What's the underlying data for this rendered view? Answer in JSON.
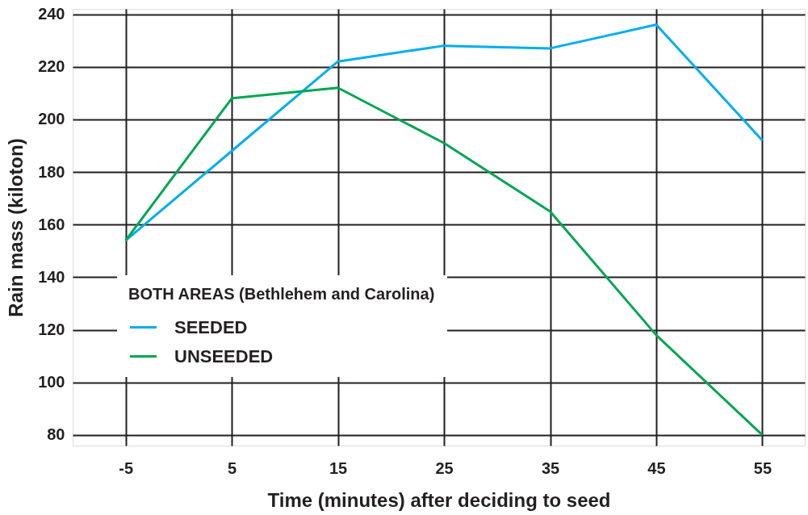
{
  "chart_data": {
    "type": "line",
    "xlabel": "Time (minutes) after deciding to seed",
    "ylabel": "Rain mass (kiloton)",
    "legend_title": "BOTH AREAS (Bethlehem and Carolina)",
    "x": [
      -5,
      5,
      15,
      25,
      35,
      45,
      55
    ],
    "series": [
      {
        "name": "SEEDED",
        "color": "#00aeef",
        "values": [
          154,
          188,
          222,
          228,
          227,
          236,
          192
        ]
      },
      {
        "name": "UNSEEDED",
        "color": "#00a651",
        "values": [
          154,
          208,
          212,
          191,
          165,
          118,
          80
        ]
      }
    ],
    "xlim": [
      -10,
      59
    ],
    "xticks": [
      -5,
      5,
      15,
      25,
      35,
      45,
      55
    ],
    "ylim": [
      76,
      242
    ],
    "yticks": [
      80,
      100,
      120,
      140,
      160,
      180,
      200,
      220,
      240
    ],
    "grid": true,
    "legend": "bottom left",
    "marker": "none",
    "line_style": "solid"
  }
}
